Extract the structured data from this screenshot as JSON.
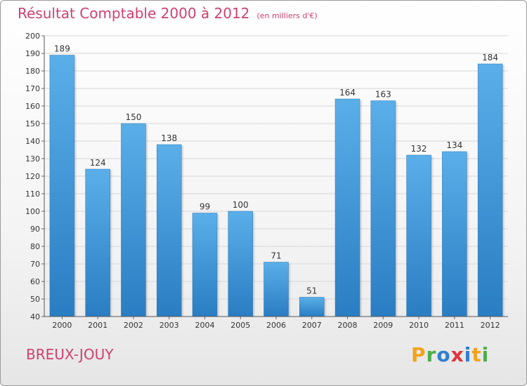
{
  "chart_data": {
    "type": "bar",
    "title": "Résultat Comptable 2000 à 2012",
    "subtitle": "(en milliers d'€)",
    "xlabel": "",
    "ylabel": "",
    "categories": [
      "2000",
      "2001",
      "2002",
      "2003",
      "2004",
      "2005",
      "2006",
      "2007",
      "2008",
      "2009",
      "2010",
      "2011",
      "2012"
    ],
    "values": [
      189,
      124,
      150,
      138,
      99,
      100,
      71,
      51,
      164,
      163,
      132,
      134,
      184
    ],
    "ylim": [
      40,
      200
    ],
    "ytick_step": 10,
    "grid": true,
    "bar_color": "#3a8fd6"
  },
  "commune": "BREUX-JOUY",
  "logo": {
    "p": "P",
    "r": "r",
    "o": "o",
    "x": "x",
    "i1": "i",
    "t": "t",
    "i2": "i"
  }
}
